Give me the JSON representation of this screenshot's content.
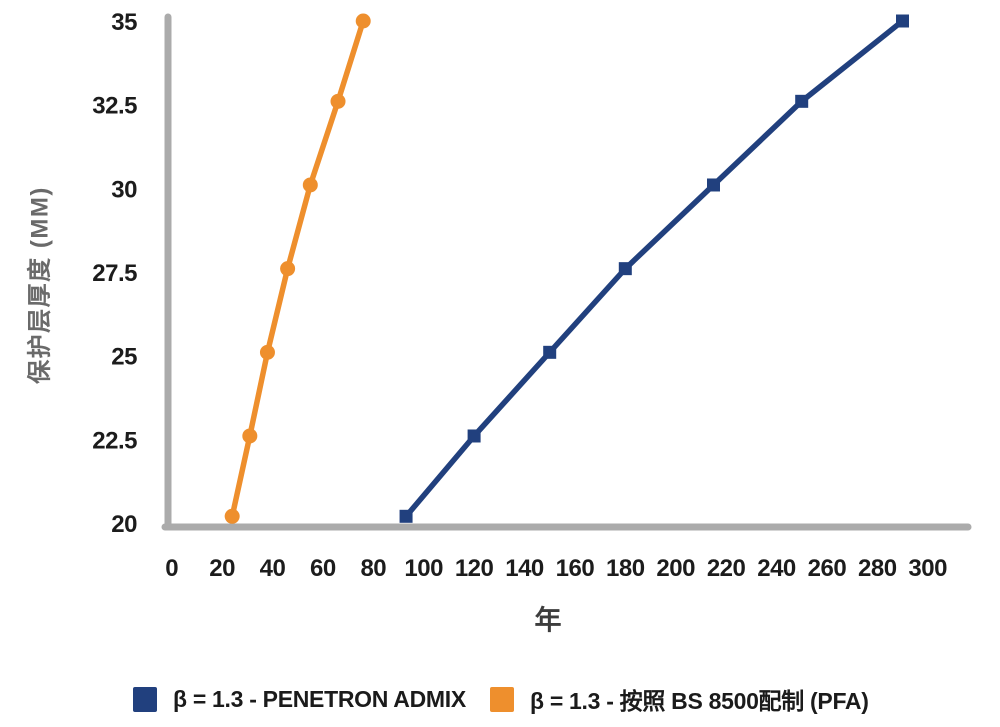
{
  "chart_data": {
    "type": "line",
    "title": "",
    "xlabel": "年",
    "ylabel": "保护层厚度 (MM)",
    "xlim": [
      0,
      300
    ],
    "ylim": [
      20,
      35
    ],
    "x_ticks": [
      0,
      20,
      40,
      60,
      80,
      100,
      120,
      140,
      160,
      180,
      200,
      220,
      240,
      260,
      280,
      300
    ],
    "y_ticks": [
      20,
      22.5,
      25,
      27.5,
      30,
      32.5,
      35
    ],
    "grid": false,
    "legend_position": "bottom",
    "axis_color": "#ababab",
    "tick_color": "#1c1c1c",
    "ylabel_color": "#6a6a6a",
    "xlabel_color": "#3d3d3d",
    "series": [
      {
        "name": "β = 1.3 - PENETRON ADMIX",
        "color": "#21407e",
        "marker": "square",
        "points": [
          [
            93,
            20.2
          ],
          [
            120,
            22.6
          ],
          [
            150,
            25.1
          ],
          [
            180,
            27.6
          ],
          [
            215,
            30.1
          ],
          [
            250,
            32.6
          ],
          [
            290,
            35
          ]
        ]
      },
      {
        "name": "β = 1.3 - 按照 BS 8500配制 (PFA)",
        "color": "#ee8f2d",
        "marker": "circle",
        "points": [
          [
            24,
            20.2
          ],
          [
            31,
            22.6
          ],
          [
            38,
            25.1
          ],
          [
            46,
            27.6
          ],
          [
            55,
            30.1
          ],
          [
            66,
            32.6
          ],
          [
            76,
            35
          ]
        ]
      }
    ]
  }
}
